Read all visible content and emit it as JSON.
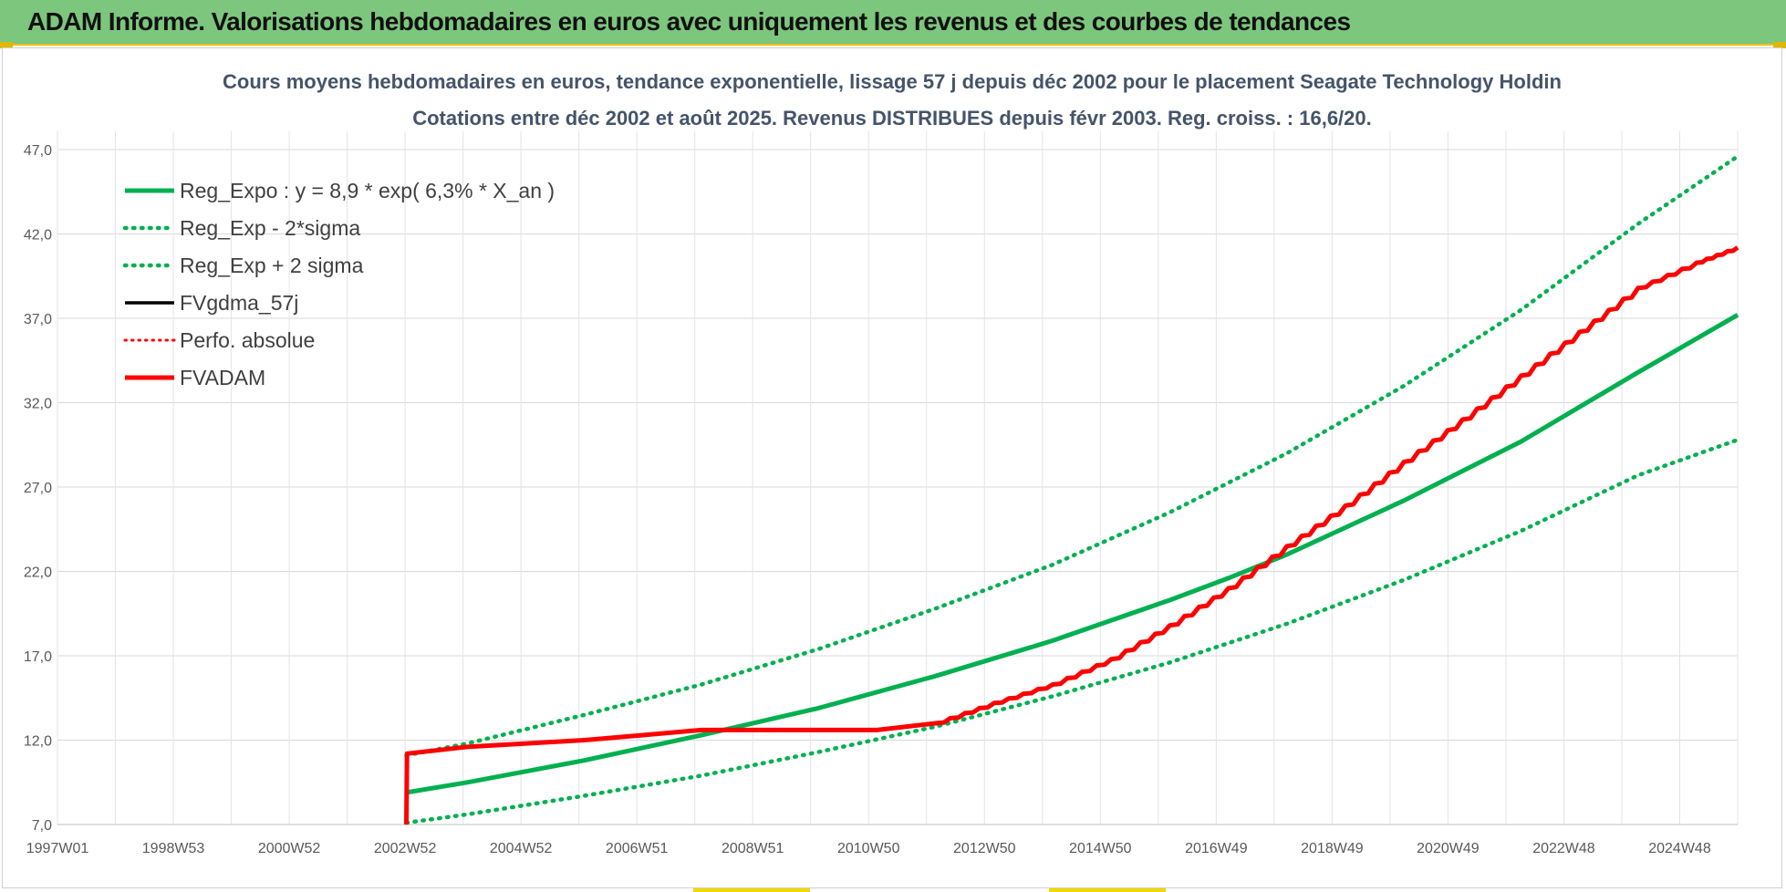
{
  "header": {
    "title": "ADAM Informe. Valorisations hebdomadaires en euros avec uniquement les revenus et des courbes de tendances"
  },
  "colors": {
    "header_bg": "#7dc67d",
    "trend_green": "#00b050",
    "fvadam_red": "#ff0000",
    "fvgdma_black": "#000000",
    "grid": "#d9d9d9"
  },
  "chart_data": {
    "type": "line",
    "title_lines": [
      "Cours moyens hebdomadaires en euros, tendance exponentielle, lissage 57 j depuis déc 2002 pour le placement Seagate Technology Holdin",
      "Cotations entre déc 2002 et août 2025. Revenus DISTRIBUES depuis févr 2003. Reg. croiss. : 16,6/20."
    ],
    "x_tick_labels": [
      "1997W01",
      "1998W53",
      "2000W52",
      "2002W52",
      "2004W52",
      "2006W51",
      "2008W51",
      "2010W50",
      "2012W50",
      "2014W50",
      "2016W49",
      "2018W49",
      "2020W49",
      "2022W48",
      "2024W48"
    ],
    "x_range_years": [
      1997.0,
      2025.7
    ],
    "ylim": [
      7.0,
      47.0
    ],
    "y_ticks": [
      "7,0",
      "12,0",
      "17,0",
      "22,0",
      "27,0",
      "32,0",
      "37,0",
      "42,0",
      "47,0"
    ],
    "grid": true,
    "legend_position": "top-left",
    "series": [
      {
        "name": "Reg_Expo : y = 8,9 * exp( 6,3% *  X_an )",
        "style": "solid-green",
        "x": [
          2002.96,
          2004.0,
          2006.0,
          2008.0,
          2010.0,
          2012.0,
          2014.0,
          2016.0,
          2017.0,
          2018.0,
          2020.0,
          2022.0,
          2024.0,
          2025.7
        ],
        "values": [
          8.9,
          9.5,
          10.8,
          12.3,
          13.9,
          15.8,
          17.9,
          20.3,
          21.6,
          23.0,
          26.2,
          29.7,
          33.8,
          37.2
        ]
      },
      {
        "name": "Reg_Exp - 2*sigma",
        "style": "dotted-green",
        "x": [
          2002.96,
          2004.0,
          2006.0,
          2008.0,
          2010.0,
          2012.0,
          2014.0,
          2016.0,
          2018.0,
          2020.0,
          2022.0,
          2024.0,
          2025.7
        ],
        "values": [
          7.1,
          7.6,
          8.7,
          9.9,
          11.3,
          12.8,
          14.6,
          16.6,
          18.9,
          21.5,
          24.4,
          27.7,
          29.8
        ]
      },
      {
        "name": "Reg_Exp + 2 sigma",
        "style": "dotted-green",
        "x": [
          2002.96,
          2004.0,
          2006.0,
          2008.0,
          2010.0,
          2012.0,
          2014.0,
          2016.0,
          2018.0,
          2020.0,
          2022.0,
          2024.0,
          2025.7
        ],
        "values": [
          11.1,
          11.8,
          13.5,
          15.3,
          17.4,
          19.8,
          22.4,
          25.5,
          29.0,
          33.0,
          37.5,
          42.6,
          46.6
        ]
      },
      {
        "name": "FVgdma_57j",
        "style": "solid-black",
        "x": [],
        "values": []
      },
      {
        "name": "Perfo. absolue",
        "style": "dotted-red",
        "x": [],
        "values": []
      },
      {
        "name": "FVADAM",
        "style": "solid-red-stepped",
        "x": [
          2002.96,
          2002.97,
          2004.0,
          2006.0,
          2007.0,
          2008.0,
          2009.0,
          2010.0,
          2011.0,
          2012.0,
          2013.0,
          2014.0,
          2015.0,
          2016.0,
          2017.0,
          2018.0,
          2019.0,
          2020.0,
          2021.0,
          2022.0,
          2023.0,
          2024.0,
          2025.0,
          2025.7
        ],
        "values": [
          7.0,
          11.2,
          11.6,
          12.0,
          12.3,
          12.6,
          12.6,
          12.6,
          12.6,
          13.0,
          14.2,
          15.3,
          16.8,
          18.8,
          21.0,
          23.5,
          25.9,
          28.5,
          31.0,
          33.6,
          36.2,
          38.8,
          40.3,
          41.2
        ]
      }
    ]
  }
}
